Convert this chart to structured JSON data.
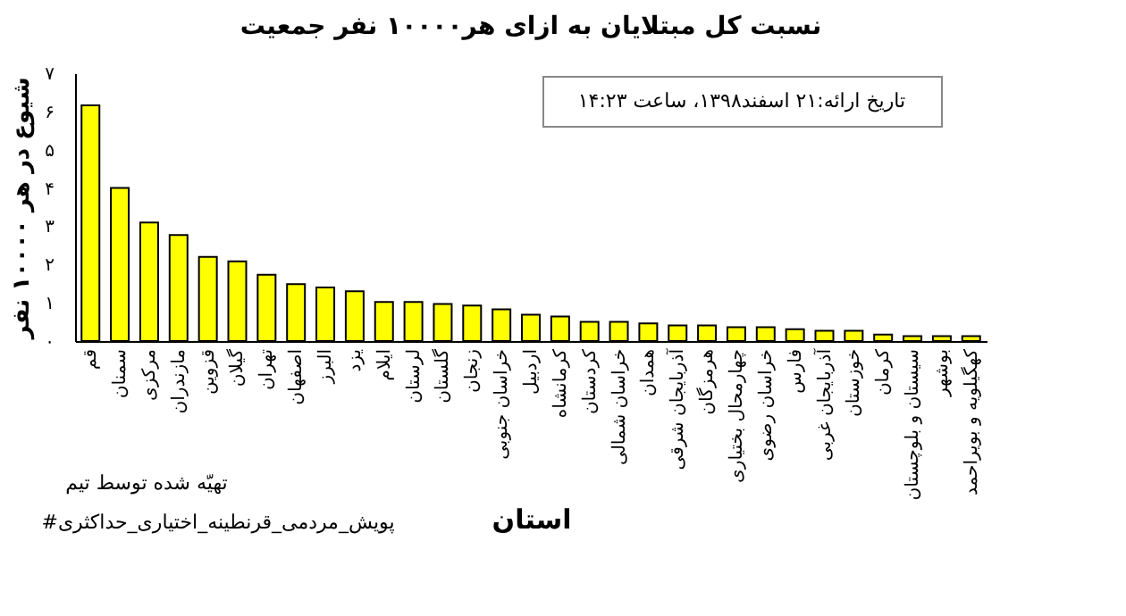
{
  "chart_data": {
    "type": "bar",
    "title": "نسبت کل مبتلایان به ازای هر۱۰۰۰۰ نفر جمعیت",
    "xlabel": "استان",
    "ylabel": "شیوع در هر ۱۰۰۰۰ نفر",
    "categories": [
      "قم",
      "سمنان",
      "مرکزی",
      "مازندران",
      "قزوین",
      "گیلان",
      "تهران",
      "اصفهان",
      "البرز",
      "یزد",
      "ایلام",
      "لرستان",
      "گلستان",
      "زنجان",
      "خراسان جنوبی",
      "اردبیل",
      "کرمانشاه",
      "کردستان",
      "خراسان شمالی",
      "همدان",
      "آذربایجان شرقی",
      "هرمزگان",
      "چهارمحال بختیاری",
      "خراسان رضوی",
      "فارس",
      "آذربایجان غربی",
      "خوزستان",
      "کرمان",
      "سیستان و بلوچستان",
      "بوشهر",
      "کهگیلویه و بویراحمد"
    ],
    "values": [
      6.16,
      4.0,
      3.1,
      2.77,
      2.2,
      2.08,
      1.73,
      1.49,
      1.4,
      1.3,
      1.02,
      1.02,
      0.97,
      0.93,
      0.83,
      0.69,
      0.64,
      0.5,
      0.5,
      0.46,
      0.41,
      0.41,
      0.36,
      0.36,
      0.31,
      0.27,
      0.27,
      0.17,
      0.13,
      0.13,
      0.13
    ],
    "color": "#ffff00",
    "ylim": [
      0,
      7
    ],
    "yticks": [
      {
        "value": 0,
        "label": "۰"
      },
      {
        "value": 1,
        "label": "۱"
      },
      {
        "value": 2,
        "label": "۲"
      },
      {
        "value": 3,
        "label": "۳"
      },
      {
        "value": 4,
        "label": "۴"
      },
      {
        "value": 5,
        "label": "۵"
      },
      {
        "value": 6,
        "label": "۶"
      },
      {
        "value": 7,
        "label": "۷"
      }
    ],
    "grid": false,
    "annotations": [
      "تاریخ ارائه:۲۱ اسفند۱۳۹۸، ساعت ۱۴:۲۳",
      "تهیّه شده توسط تیم",
      "#پویش_مردمی_قرنطینه_اختیاری_حداکثری"
    ]
  }
}
